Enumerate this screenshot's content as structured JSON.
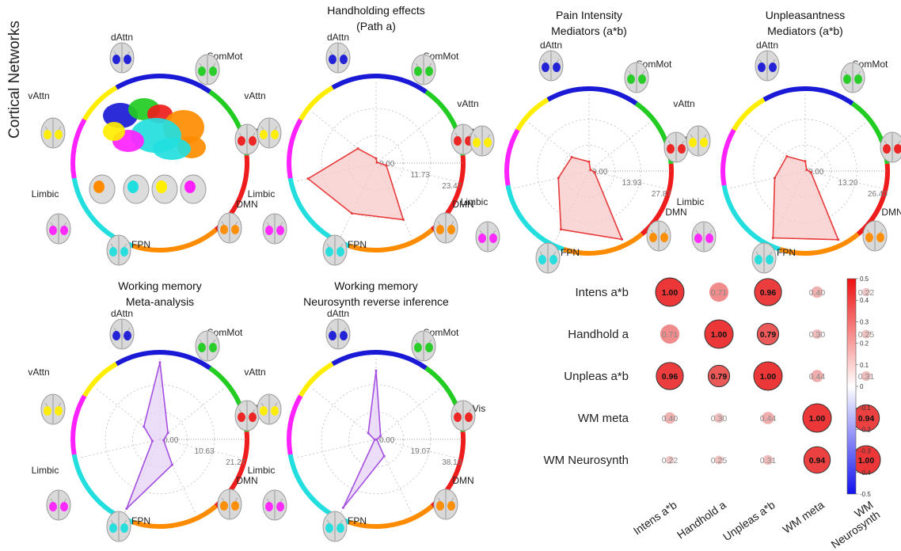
{
  "side_label": "Cortical Networks",
  "network_labels": [
    "dAttn",
    "SomMot",
    "Vis",
    "DMN",
    "FPN",
    "Limbic",
    "vAttn"
  ],
  "network_colors": [
    "#1a1ad6",
    "#22cc22",
    "#ee1c1c",
    "#ff8c00",
    "#22dede",
    "#ff22ff",
    "#ffee00"
  ],
  "chart_data": [
    {
      "type": "radar",
      "title": "",
      "panel": "networks-legend",
      "axes": [
        "dAttn",
        "SomMot",
        "Vis",
        "DMN",
        "FPN",
        "Limbic",
        "vAttn"
      ],
      "values": []
    },
    {
      "type": "radar",
      "title": "Handholding effects (Path a)",
      "title_lines": [
        "Handholding effects",
        "(Path a)"
      ],
      "axes": [
        "dAttn",
        "SomMot",
        "Vis",
        "DMN",
        "FPN",
        "Limbic",
        "vAttn"
      ],
      "ring_labels": [
        "0.00",
        "11.73",
        "23.47"
      ],
      "rmax": 35.2,
      "values": [
        2.0,
        0.5,
        4.5,
        27.0,
        24.0,
        30.0,
        10.0
      ],
      "line_color": "#e83a3a",
      "fill_color": "#f7c9c9"
    },
    {
      "type": "radar",
      "title": "Pain Intensity Mediators (a*b)",
      "title_lines": [
        "Pain Intensity",
        "Mediators (a*b)"
      ],
      "axes": [
        "dAttn",
        "SomMot",
        "Vis",
        "DMN",
        "FPN",
        "Limbic",
        "vAttn"
      ],
      "ring_labels": [
        "0.00",
        "13.93",
        "27.87"
      ],
      "rmax": 41.8,
      "values": [
        5.0,
        1.0,
        3.0,
        41.0,
        35.0,
        17.0,
        12.0
      ],
      "line_color": "#e83a3a",
      "fill_color": "#f7c9c9"
    },
    {
      "type": "radar",
      "title": "Unpleasantness Mediators (a*b)",
      "title_lines": [
        "Unpleasantness",
        "Mediators (a*b)"
      ],
      "axes": [
        "dAttn",
        "SomMot",
        "Vis",
        "DMN",
        "FPN",
        "Limbic",
        "vAttn"
      ],
      "ring_labels": [
        "0.00",
        "13.20",
        "26.40"
      ],
      "rmax": 39.6,
      "values": [
        5.0,
        1.0,
        3.0,
        39.0,
        38.0,
        16.0,
        12.0
      ],
      "line_color": "#e83a3a",
      "fill_color": "#f7c9c9"
    },
    {
      "type": "radar",
      "title": "Working memory Meta-analysis",
      "title_lines": [
        "Working memory",
        "Meta-analysis"
      ],
      "axes": [
        "dAttn",
        "SomMot",
        "Vis",
        "DMN",
        "FPN",
        "Limbic",
        "vAttn"
      ],
      "ring_labels": [
        "0.00",
        "10.63",
        "21.27"
      ],
      "rmax": 31.9,
      "values": [
        30.0,
        4.0,
        1.5,
        11.0,
        30.0,
        3.0,
        8.0
      ],
      "line_color": "#a550e0",
      "fill_color": "#e6d2f7"
    },
    {
      "type": "radar",
      "title": "Working memory Neurosynth reverse inference",
      "title_lines": [
        "Working memory",
        "Neurosynth reverse inference"
      ],
      "axes": [
        "dAttn",
        "SomMot",
        "Vis",
        "DMN",
        "FPN",
        "Limbic",
        "vAttn"
      ],
      "ring_labels": [
        "0.00",
        "19.07",
        "38.13"
      ],
      "rmax": 57.2,
      "values": [
        48.0,
        4.0,
        0.5,
        13.0,
        53.0,
        1.0,
        7.0
      ],
      "line_color": "#a550e0",
      "fill_color": "#e6d2f7"
    },
    {
      "type": "heatmap",
      "title": "",
      "row_labels": [
        "Intens a*b",
        "Handhold a",
        "Unpleas a*b",
        "WM meta",
        "WM Neurosynth"
      ],
      "col_labels": [
        "Intens a*b",
        "Handhold a",
        "Unpleas a*b",
        "WM meta",
        "WM Neurosynth"
      ],
      "col_label_lines": [
        [
          "Intens a*b"
        ],
        [
          "Handhold a"
        ],
        [
          "Unpleas a*b"
        ],
        [
          "WM meta"
        ],
        [
          "WM",
          "Neurosynth"
        ]
      ],
      "values": [
        [
          1.0,
          0.71,
          0.96,
          0.4,
          0.22
        ],
        [
          0.71,
          1.0,
          0.79,
          0.3,
          0.25
        ],
        [
          0.96,
          0.79,
          1.0,
          0.44,
          0.31
        ],
        [
          0.4,
          0.3,
          0.44,
          1.0,
          0.94
        ],
        [
          0.22,
          0.25,
          0.31,
          0.94,
          1.0
        ]
      ],
      "value_labels": [
        [
          "1.00",
          "0.71",
          "0.96",
          "0.40",
          "0.22"
        ],
        [
          "0.71",
          "1.00",
          "0.79",
          "0.30",
          "0.25"
        ],
        [
          "0.96",
          "0.79",
          "1.00",
          "0.44",
          "0.31"
        ],
        [
          "0.40",
          "0.30",
          "0.44",
          "1.00",
          "0.94"
        ],
        [
          "0.22",
          "0.25",
          "0.31",
          "0.94",
          "1.00"
        ]
      ],
      "colorbar_ticks": [
        "0.5",
        "0.4",
        "0.3",
        "0.2",
        "0.1",
        "0",
        "-0.1",
        "-0.2",
        "-0.3",
        "-0.4",
        "-0.5"
      ],
      "colorbar_range": [
        -0.5,
        0.5
      ]
    }
  ]
}
